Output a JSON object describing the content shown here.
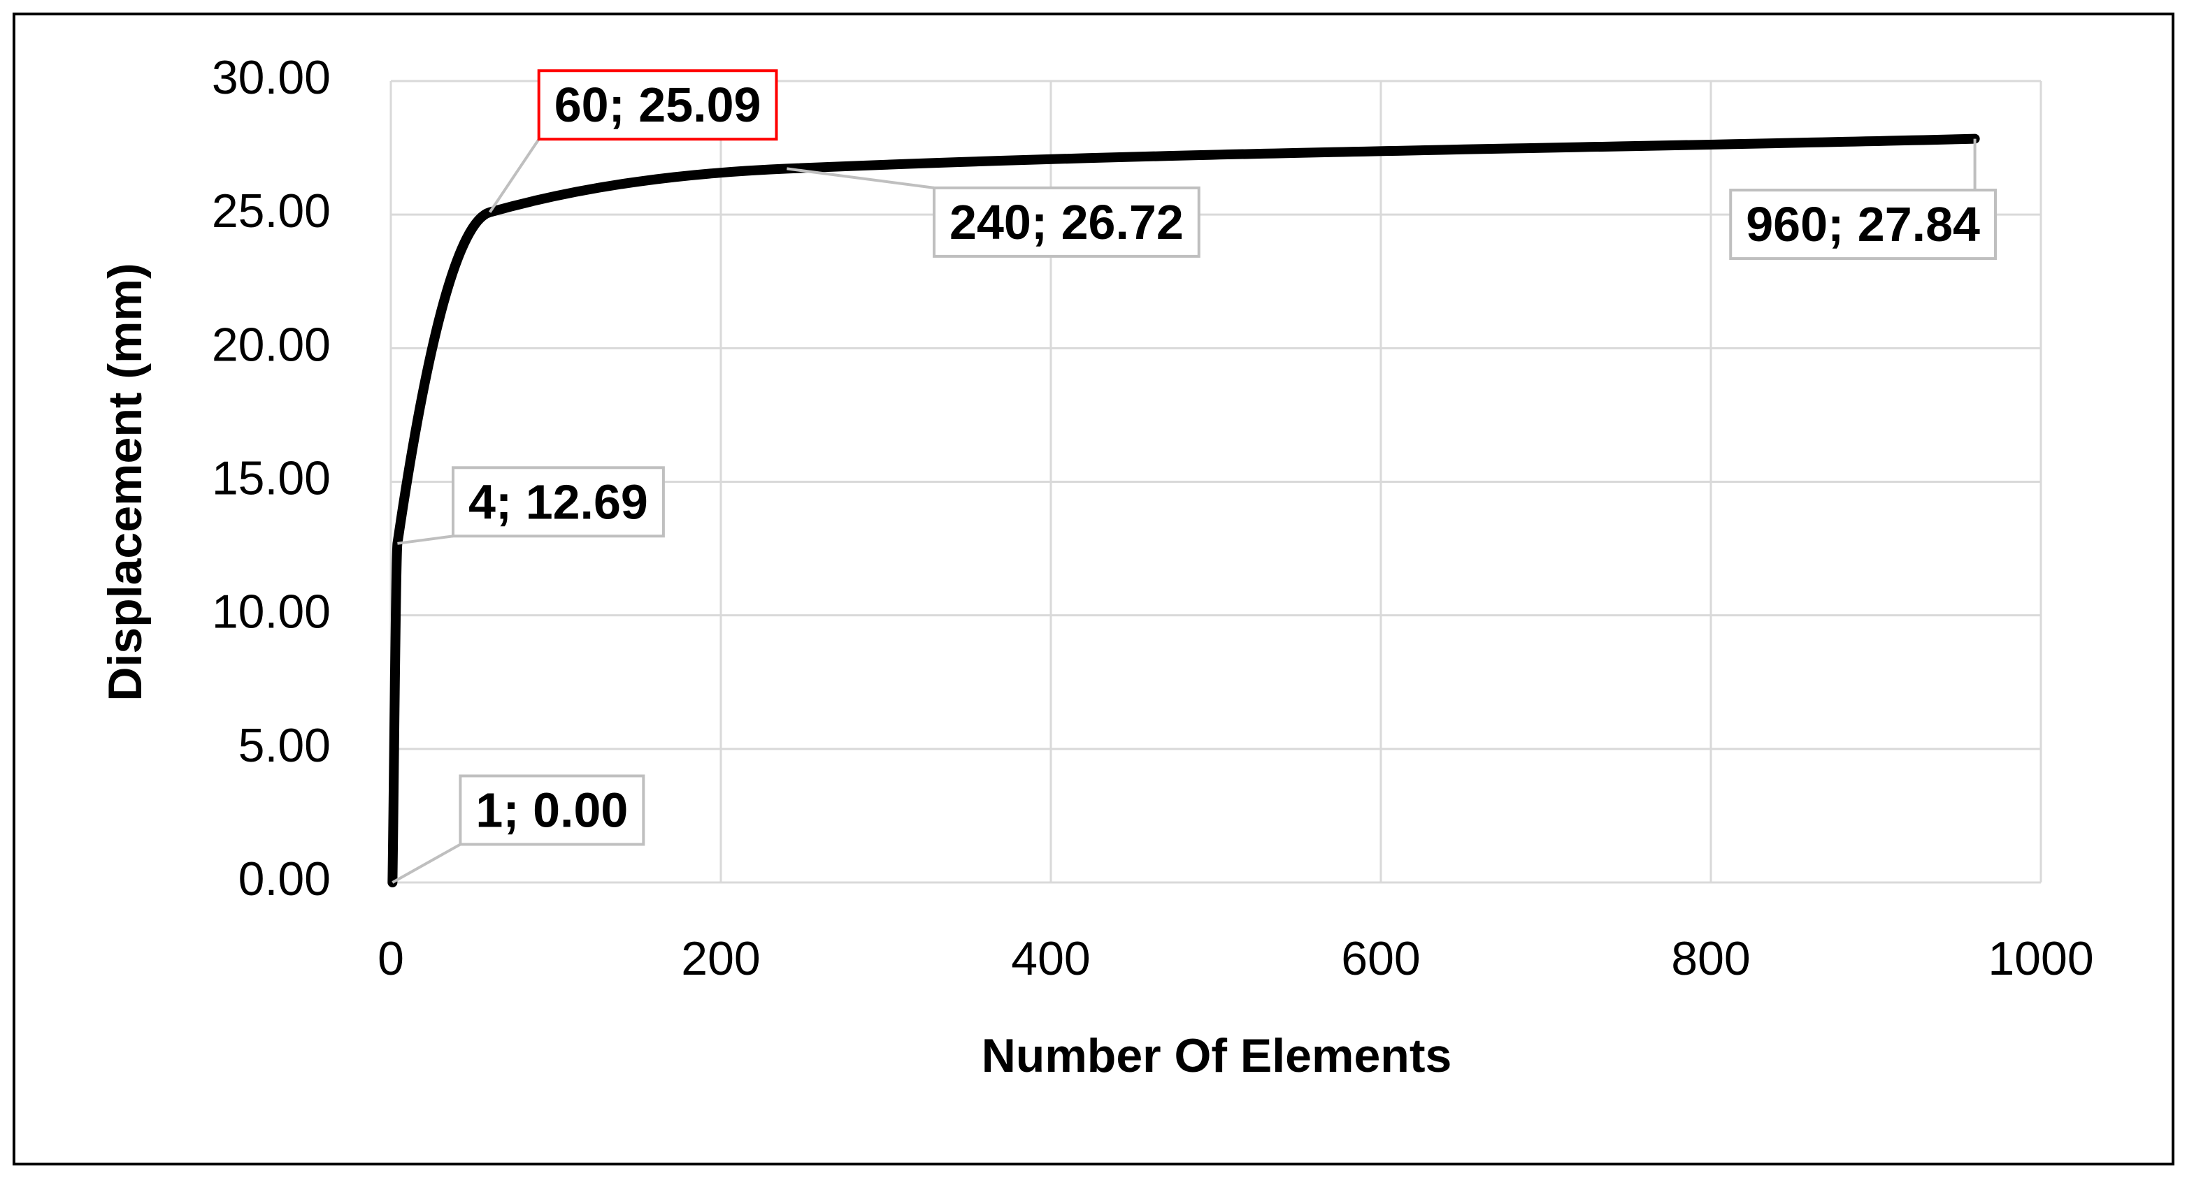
{
  "chart_data": {
    "type": "line",
    "x_label": "Number Of Elements",
    "y_label": "Displacement (mm)",
    "x": [
      1,
      4,
      60,
      240,
      960
    ],
    "values": [
      0.0,
      12.69,
      25.09,
      26.72,
      27.84
    ],
    "value_labels": [
      "1; 0.00",
      "4; 12.69",
      "60; 25.09",
      "240; 26.72",
      "960; 27.84"
    ],
    "label_border_colors": [
      "#bfbfbf",
      "#bfbfbf",
      "#ff0000",
      "#bfbfbf",
      "#bfbfbf"
    ],
    "label_color": "#ff0000",
    "color": "#000000",
    "xlim": [
      0,
      1000
    ],
    "xticks": [
      0,
      200,
      400,
      600,
      800,
      1000
    ],
    "ylim": [
      0,
      30
    ],
    "yticks": [
      {
        "value": 0,
        "label": "0.00"
      },
      {
        "value": 5,
        "label": "5.00"
      },
      {
        "value": 10,
        "label": "10.00"
      },
      {
        "value": 15,
        "label": "15.00"
      },
      {
        "value": 20,
        "label": "20.00"
      },
      {
        "value": 25,
        "label": "25.00"
      },
      {
        "value": 30,
        "label": "30.00"
      }
    ],
    "grid": true
  }
}
